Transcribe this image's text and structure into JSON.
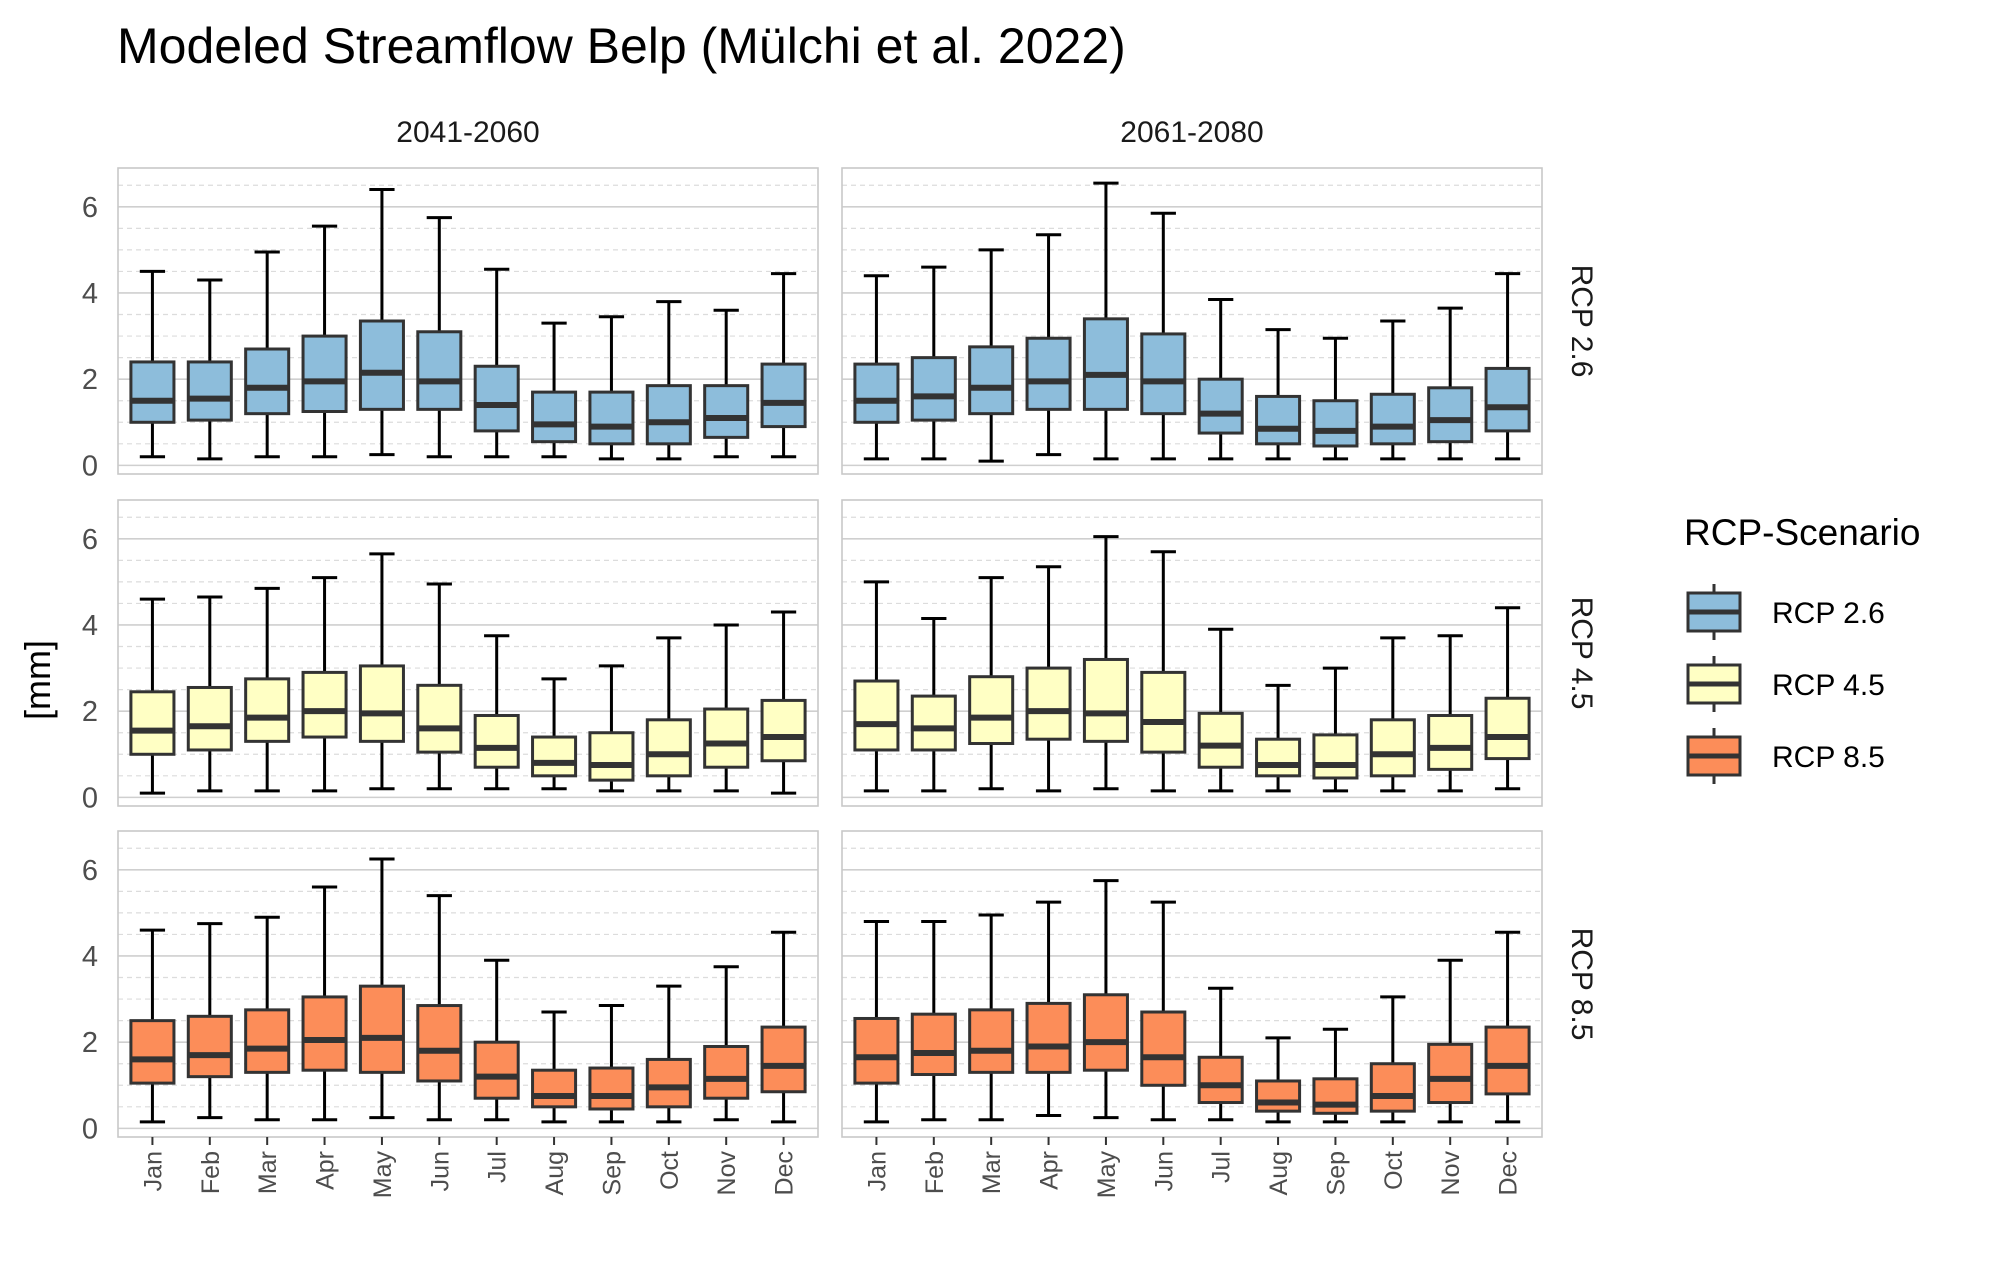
{
  "chart_data": {
    "type": "box",
    "title": "Modeled Streamflow Belp (Mülchi et al. 2022)",
    "ylabel": "[mm]",
    "xlabel": "",
    "ylim": [
      -0.2,
      6.9
    ],
    "y_ticks": [
      0,
      2,
      4,
      6
    ],
    "grid": true,
    "categories": [
      "Jan",
      "Feb",
      "Mar",
      "Apr",
      "May",
      "Jun",
      "Jul",
      "Aug",
      "Sep",
      "Oct",
      "Nov",
      "Dec"
    ],
    "column_facets": [
      "2041-2060",
      "2061-2080"
    ],
    "row_facets": [
      "RCP 2.6",
      "RCP 4.5",
      "RCP 8.5"
    ],
    "legend": {
      "title": "RCP-Scenario",
      "position": "right",
      "entries": [
        {
          "label": "RCP 2.6",
          "color": "#8dbddb"
        },
        {
          "label": "RCP 4.5",
          "color": "#ffffc4"
        },
        {
          "label": "RCP 8.5",
          "color": "#fc8d59"
        }
      ]
    },
    "box_order": "[min, q1, median, q3, max] per month",
    "panels": [
      {
        "row": "RCP 2.6",
        "col": "2041-2060",
        "color": "#8dbddb",
        "boxes": [
          [
            0.2,
            1.0,
            1.5,
            2.4,
            4.5
          ],
          [
            0.15,
            1.05,
            1.55,
            2.4,
            4.3
          ],
          [
            0.2,
            1.2,
            1.8,
            2.7,
            4.95
          ],
          [
            0.2,
            1.25,
            1.95,
            3.0,
            5.55
          ],
          [
            0.25,
            1.3,
            2.15,
            3.35,
            6.4
          ],
          [
            0.2,
            1.3,
            1.95,
            3.1,
            5.75
          ],
          [
            0.2,
            0.8,
            1.4,
            2.3,
            4.55
          ],
          [
            0.2,
            0.55,
            0.95,
            1.7,
            3.3
          ],
          [
            0.15,
            0.5,
            0.9,
            1.7,
            3.45
          ],
          [
            0.15,
            0.5,
            1.0,
            1.85,
            3.8
          ],
          [
            0.2,
            0.65,
            1.1,
            1.85,
            3.6
          ],
          [
            0.2,
            0.9,
            1.45,
            2.35,
            4.45
          ]
        ]
      },
      {
        "row": "RCP 2.6",
        "col": "2061-2080",
        "color": "#8dbddb",
        "boxes": [
          [
            0.15,
            1.0,
            1.5,
            2.35,
            4.4
          ],
          [
            0.15,
            1.05,
            1.6,
            2.5,
            4.6
          ],
          [
            0.1,
            1.2,
            1.8,
            2.75,
            5.0
          ],
          [
            0.25,
            1.3,
            1.95,
            2.95,
            5.35
          ],
          [
            0.15,
            1.3,
            2.1,
            3.4,
            6.55
          ],
          [
            0.15,
            1.2,
            1.95,
            3.05,
            5.85
          ],
          [
            0.15,
            0.75,
            1.2,
            2.0,
            3.85
          ],
          [
            0.15,
            0.5,
            0.85,
            1.6,
            3.15
          ],
          [
            0.15,
            0.45,
            0.8,
            1.5,
            2.95
          ],
          [
            0.15,
            0.5,
            0.9,
            1.65,
            3.35
          ],
          [
            0.15,
            0.55,
            1.05,
            1.8,
            3.65
          ],
          [
            0.15,
            0.8,
            1.35,
            2.25,
            4.45
          ]
        ]
      },
      {
        "row": "RCP 4.5",
        "col": "2041-2060",
        "color": "#ffffc4",
        "boxes": [
          [
            0.1,
            1.0,
            1.55,
            2.45,
            4.6
          ],
          [
            0.15,
            1.1,
            1.65,
            2.55,
            4.65
          ],
          [
            0.15,
            1.3,
            1.85,
            2.75,
            4.85
          ],
          [
            0.15,
            1.4,
            2.0,
            2.9,
            5.1
          ],
          [
            0.2,
            1.3,
            1.95,
            3.05,
            5.65
          ],
          [
            0.2,
            1.05,
            1.6,
            2.6,
            4.95
          ],
          [
            0.2,
            0.7,
            1.15,
            1.9,
            3.75
          ],
          [
            0.2,
            0.5,
            0.8,
            1.4,
            2.75
          ],
          [
            0.15,
            0.4,
            0.75,
            1.5,
            3.05
          ],
          [
            0.15,
            0.5,
            1.0,
            1.8,
            3.7
          ],
          [
            0.15,
            0.7,
            1.25,
            2.05,
            4.0
          ],
          [
            0.1,
            0.85,
            1.4,
            2.25,
            4.3
          ]
        ]
      },
      {
        "row": "RCP 4.5",
        "col": "2061-2080",
        "color": "#ffffc4",
        "boxes": [
          [
            0.15,
            1.1,
            1.7,
            2.7,
            5.0
          ],
          [
            0.15,
            1.1,
            1.6,
            2.35,
            4.15
          ],
          [
            0.2,
            1.25,
            1.85,
            2.8,
            5.1
          ],
          [
            0.15,
            1.35,
            2.0,
            3.0,
            5.35
          ],
          [
            0.2,
            1.3,
            1.95,
            3.2,
            6.05
          ],
          [
            0.15,
            1.05,
            1.75,
            2.9,
            5.7
          ],
          [
            0.15,
            0.7,
            1.2,
            1.95,
            3.9
          ],
          [
            0.15,
            0.5,
            0.75,
            1.35,
            2.6
          ],
          [
            0.15,
            0.45,
            0.75,
            1.45,
            3.0
          ],
          [
            0.15,
            0.5,
            1.0,
            1.8,
            3.7
          ],
          [
            0.15,
            0.65,
            1.15,
            1.9,
            3.75
          ],
          [
            0.2,
            0.9,
            1.4,
            2.3,
            4.4
          ]
        ]
      },
      {
        "row": "RCP 8.5",
        "col": "2041-2060",
        "color": "#fc8d59",
        "boxes": [
          [
            0.15,
            1.05,
            1.6,
            2.5,
            4.6
          ],
          [
            0.25,
            1.2,
            1.7,
            2.6,
            4.75
          ],
          [
            0.2,
            1.3,
            1.85,
            2.75,
            4.9
          ],
          [
            0.2,
            1.35,
            2.05,
            3.05,
            5.6
          ],
          [
            0.25,
            1.3,
            2.1,
            3.3,
            6.25
          ],
          [
            0.2,
            1.1,
            1.8,
            2.85,
            5.4
          ],
          [
            0.2,
            0.7,
            1.2,
            2.0,
            3.9
          ],
          [
            0.15,
            0.5,
            0.75,
            1.35,
            2.7
          ],
          [
            0.15,
            0.45,
            0.75,
            1.4,
            2.85
          ],
          [
            0.15,
            0.5,
            0.95,
            1.6,
            3.3
          ],
          [
            0.2,
            0.7,
            1.15,
            1.9,
            3.75
          ],
          [
            0.15,
            0.85,
            1.45,
            2.35,
            4.55
          ]
        ]
      },
      {
        "row": "RCP 8.5",
        "col": "2061-2080",
        "color": "#fc8d59",
        "boxes": [
          [
            0.15,
            1.05,
            1.65,
            2.55,
            4.8
          ],
          [
            0.2,
            1.25,
            1.75,
            2.65,
            4.8
          ],
          [
            0.2,
            1.3,
            1.8,
            2.75,
            4.95
          ],
          [
            0.3,
            1.3,
            1.9,
            2.9,
            5.25
          ],
          [
            0.25,
            1.35,
            2.0,
            3.1,
            5.75
          ],
          [
            0.2,
            1.0,
            1.65,
            2.7,
            5.25
          ],
          [
            0.2,
            0.6,
            1.0,
            1.65,
            3.25
          ],
          [
            0.15,
            0.4,
            0.6,
            1.1,
            2.1
          ],
          [
            0.15,
            0.35,
            0.55,
            1.15,
            2.3
          ],
          [
            0.15,
            0.4,
            0.75,
            1.5,
            3.05
          ],
          [
            0.15,
            0.6,
            1.15,
            1.95,
            3.9
          ],
          [
            0.15,
            0.8,
            1.45,
            2.35,
            4.55
          ]
        ]
      }
    ]
  }
}
